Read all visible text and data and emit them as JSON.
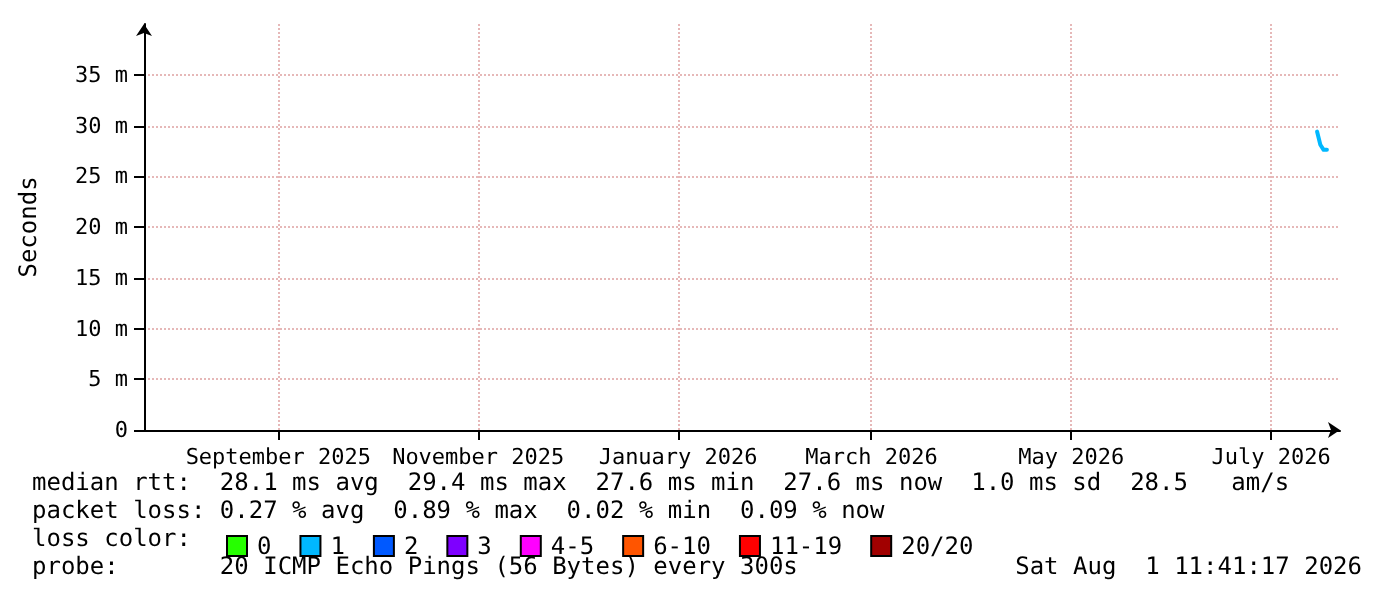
{
  "chart_data": {
    "type": "line",
    "ylabel": "Seconds",
    "legend_title": "loss color:",
    "xlim": [
      "2025-08-01",
      "2026-08-01"
    ],
    "xticks": [
      {
        "value": "2025-09-11",
        "label": "September 2025"
      },
      {
        "value": "2025-11-11",
        "label": "November 2025"
      },
      {
        "value": "2026-01-11",
        "label": "January 2026"
      },
      {
        "value": "2026-03-11",
        "label": "March 2026"
      },
      {
        "value": "2026-05-11",
        "label": "May 2026"
      },
      {
        "value": "2026-07-11",
        "label": "July 2026"
      }
    ],
    "ylim": [
      0,
      40
    ],
    "yticks": [
      {
        "value": 0,
        "label": "0"
      },
      {
        "value": 5,
        "label": "5 m"
      },
      {
        "value": 10,
        "label": "10 m"
      },
      {
        "value": 15,
        "label": "15 m"
      },
      {
        "value": 20,
        "label": "20 m"
      },
      {
        "value": 25,
        "label": "25 m"
      },
      {
        "value": 30,
        "label": "30 m"
      },
      {
        "value": 35,
        "label": "35 m"
      }
    ],
    "x": [
      "2026-07-25",
      "2026-07-26",
      "2026-07-27",
      "2026-07-28"
    ],
    "series": [
      {
        "name": "0",
        "color": "#26ff00",
        "values": [
          null,
          null,
          null,
          null
        ]
      },
      {
        "name": "1",
        "color": "#00b8ff",
        "values": [
          29.4,
          28.1,
          27.6,
          27.6
        ]
      },
      {
        "name": "2",
        "color": "#0059ff",
        "values": [
          null,
          null,
          null,
          null
        ]
      },
      {
        "name": "3",
        "color": "#7e00ff",
        "values": [
          null,
          null,
          null,
          null
        ]
      },
      {
        "name": "4-5",
        "color": "#ff00ff",
        "values": [
          null,
          null,
          null,
          null
        ]
      },
      {
        "name": "6-10",
        "color": "#ff5500",
        "values": [
          null,
          null,
          null,
          null
        ]
      },
      {
        "name": "11-19",
        "color": "#ff0000",
        "values": [
          null,
          null,
          null,
          null
        ]
      },
      {
        "name": "20/20",
        "color": "#a10000",
        "values": [
          null,
          null,
          null,
          null
        ]
      }
    ],
    "grid": true,
    "legend": "bottom",
    "marker": "none",
    "line_style": "solid",
    "annotations": [
      "median rtt:  28.1 ms avg  29.4 ms max  27.6 ms min  27.6 ms now  1.0 ms sd  28.5   am/s",
      "packet loss: 0.27 % avg  0.89 % max  0.02 % min  0.09 % now",
      "probe:       20 ICMP Echo Pings (56 Bytes) every 300s",
      "Sat Aug  1 11:41:17 2026"
    ]
  }
}
